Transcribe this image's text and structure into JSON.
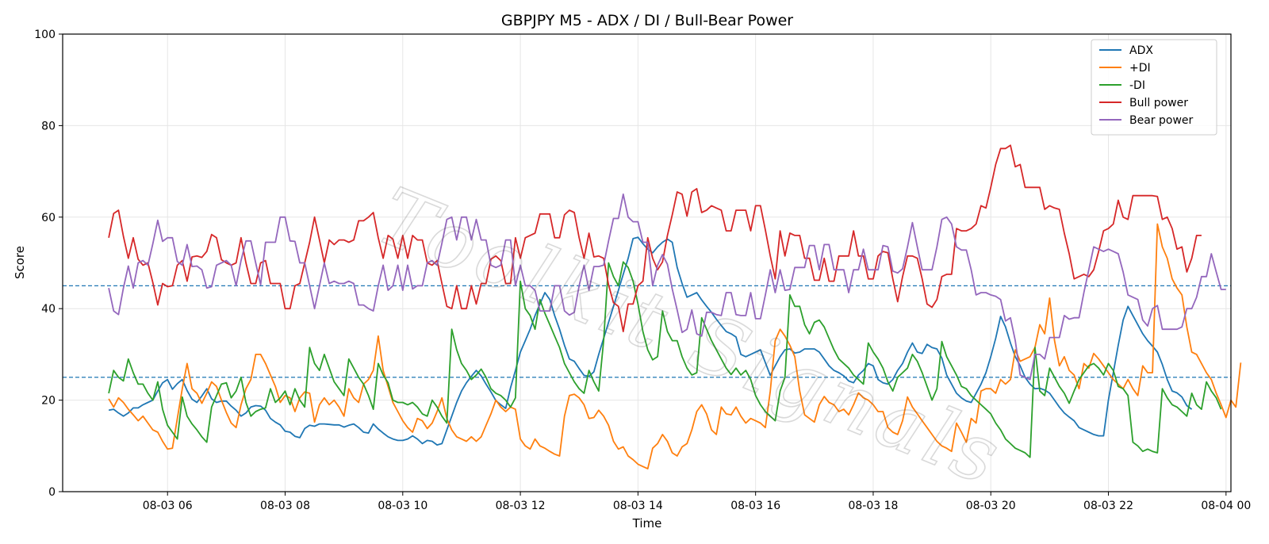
{
  "chart_data": {
    "type": "line",
    "title": "GBPJPY M5 - ADX / DI / Bull-Bear Power",
    "xlabel": "Time",
    "ylabel": "Score",
    "ylim": [
      0,
      100
    ],
    "yticks": [
      0,
      20,
      40,
      60,
      80,
      100
    ],
    "xlim": [
      "08-03 04:13",
      "08-04 00:05"
    ],
    "xticks": [
      "08-03 06",
      "08-03 08",
      "08-03 10",
      "08-03 12",
      "08-03 14",
      "08-03 16",
      "08-03 18",
      "08-03 20",
      "08-03 22",
      "08-04 00"
    ],
    "grid": true,
    "legend_position": "top-right",
    "hlines": [
      45,
      25
    ],
    "x_start": "08-03 05:00",
    "x_step_minutes": 5,
    "series": [
      {
        "name": "ADX",
        "color": "#1f77b4",
        "values": [
          17.8,
          18,
          17.2,
          16.5,
          17.2,
          18.3,
          18.3,
          19,
          19.5,
          20,
          22,
          23.8,
          24.5,
          22.4,
          23.6,
          24.5,
          22.1,
          20.2,
          19.5,
          20.9,
          22.5,
          20.3,
          19.5,
          19.8,
          19.8,
          18.7,
          17.8,
          16.5,
          17.2,
          18.5,
          18.8,
          18.7,
          17.8,
          16,
          15.2,
          14.6,
          13.2,
          13,
          12.1,
          11.8,
          13.8,
          14.5,
          14.3,
          14.8,
          14.8,
          14.7,
          14.6,
          14.6,
          14.1,
          14.5,
          14.8,
          14,
          13,
          12.8,
          14.8,
          13.7,
          12.8,
          12,
          11.5,
          11.2,
          11.2,
          11.5,
          12.2,
          11.5,
          10.5,
          11.2,
          11,
          10.2,
          10.5,
          13.5,
          16.5,
          19.5,
          22,
          23.8,
          25.2,
          26.5,
          25.3,
          23.5,
          21.8,
          19.9,
          19,
          18.2,
          22.7,
          26.5,
          30.5,
          33,
          35.5,
          38.5,
          41,
          43.5,
          42,
          38.5,
          35.5,
          32,
          29,
          28.5,
          26.9,
          25.4,
          25.2,
          26.2,
          30,
          33.5,
          37,
          40.5,
          44,
          47.5,
          51,
          55.3,
          55.6,
          54.2,
          53,
          52.2,
          53.5,
          54.5,
          55.2,
          54.5,
          49,
          45.5,
          42.5,
          43,
          43.5,
          41.9,
          40.5,
          39.2,
          37.7,
          36.3,
          35,
          34.5,
          33.8,
          30,
          29.5,
          30,
          30.5,
          31,
          28.2,
          25.4,
          27.5,
          29.5,
          31,
          31.2,
          30.3,
          30.5,
          31.2,
          31.2,
          31.2,
          30.5,
          29,
          27.5,
          26.5,
          26,
          25.3,
          24.2,
          23.8,
          25.5,
          26.5,
          28,
          27.5,
          24.5,
          23.8,
          23.5,
          24.5,
          26.5,
          28,
          30.5,
          32.5,
          30.5,
          30.2,
          32.2,
          31.5,
          31.2,
          29.2,
          25.5,
          23.5,
          21.5,
          20.5,
          19.8,
          19.5,
          21.5,
          23.5,
          26,
          29.5,
          33.5,
          38.3,
          36,
          32.5,
          29.5,
          27.5,
          25,
          23.5,
          22.5,
          22.6,
          22.2,
          21.5,
          20,
          18.5,
          17.2,
          16.3,
          15.5,
          14,
          13.5,
          13,
          12.5,
          12.2,
          12.2,
          20,
          26,
          32,
          37.5,
          40.5,
          38.5,
          36.5,
          34.5,
          33,
          31.8,
          30.5,
          27.8,
          24.5,
          22,
          21.6,
          20.7,
          18.8,
          18
        ]
      },
      {
        "name": "+DI",
        "color": "#ff7f0e",
        "values": [
          20.3,
          18.5,
          20.5,
          19.5,
          18,
          16.8,
          15.5,
          16.5,
          15,
          13.5,
          13,
          11,
          9.3,
          9.5,
          16,
          22.5,
          28,
          22.5,
          21.5,
          19.3,
          21.5,
          24,
          23,
          20,
          17.3,
          15,
          14,
          19,
          22.5,
          24.5,
          30,
          30,
          28,
          25.5,
          23,
          19.5,
          21,
          20.5,
          17.5,
          20.5,
          21.8,
          21.5,
          15.2,
          19,
          20.5,
          19,
          20,
          18.5,
          16.5,
          22.5,
          20.5,
          19.5,
          23.5,
          24.5,
          26.5,
          34,
          26.5,
          23,
          19.5,
          17.5,
          15.5,
          14,
          13,
          16,
          15.5,
          13.8,
          15,
          17.5,
          20.5,
          16,
          13.5,
          12,
          11.5,
          11,
          12,
          11,
          12,
          14.5,
          17,
          20,
          18.5,
          17.5,
          18.5,
          18,
          11.5,
          10,
          9.3,
          11.5,
          10,
          9.5,
          8.8,
          8.2,
          7.8,
          16.5,
          21,
          21.3,
          20.5,
          19,
          16,
          16.2,
          17.8,
          16.5,
          14.5,
          11,
          9.3,
          9.8,
          7.8,
          7,
          6,
          5.5,
          5,
          9.5,
          10.5,
          12.5,
          11,
          8.5,
          7.8,
          9.8,
          10.5,
          13.5,
          17.5,
          19,
          17,
          13.5,
          12.5,
          18.5,
          17,
          16.8,
          18.5,
          16.5,
          15,
          16,
          15.5,
          15,
          14,
          22,
          33,
          35.5,
          34,
          32,
          29.5,
          22,
          16.8,
          16,
          15.2,
          19,
          20.8,
          19.5,
          19,
          17.5,
          18,
          16.8,
          19,
          21.6,
          20.5,
          20,
          19,
          17.5,
          17.5,
          14,
          13,
          12.5,
          15.5,
          20.7,
          18.5,
          17,
          15.5,
          14,
          12.5,
          11,
          10,
          9.5,
          8.8,
          15,
          13,
          10.8,
          16,
          15,
          22,
          22.5,
          22.5,
          21.5,
          24.5,
          23.5,
          24.5,
          31,
          28.5,
          29,
          29.5,
          31.5,
          36.5,
          34.5,
          42.3,
          33,
          27.5,
          29.5,
          26.5,
          25.5,
          22.5,
          28,
          27,
          30.2,
          29,
          27.5,
          26,
          24.5,
          23.5,
          22.5,
          24.5,
          22.5,
          21,
          27.5,
          26,
          26,
          58.5,
          53.5,
          51,
          46.5,
          44.5,
          43,
          36,
          30.5,
          30,
          28,
          26,
          24.5,
          21.5,
          19,
          16.2,
          20,
          18.5,
          28.2
        ]
      },
      {
        "name": "-DI",
        "color": "#2ca02c",
        "values": [
          21.5,
          26.5,
          25,
          24.2,
          29,
          26,
          23.5,
          23.5,
          21.5,
          20,
          24,
          18,
          14.5,
          13,
          11.5,
          20.7,
          16.5,
          14.8,
          13.5,
          12,
          10.8,
          18.5,
          21,
          23.5,
          23.8,
          20.5,
          22,
          25,
          19.5,
          16.5,
          17.5,
          18,
          18.3,
          22.5,
          19.5,
          20.5,
          22,
          19,
          22.5,
          20,
          18.5,
          31.5,
          28,
          26.5,
          30,
          27,
          24,
          22.5,
          21,
          29,
          27,
          25,
          23.5,
          21,
          18,
          28,
          25.5,
          23.8,
          20,
          19.5,
          19.5,
          19,
          19.5,
          18.5,
          17,
          16.5,
          20,
          18.5,
          16.5,
          15,
          35.5,
          31,
          28,
          26.5,
          24.5,
          25.5,
          26.8,
          25,
          22.5,
          21.5,
          21,
          20,
          18.5,
          20.5,
          46,
          40,
          38.5,
          35.5,
          42,
          39,
          36.5,
          34,
          31.5,
          28,
          26,
          24,
          22.5,
          21.5,
          26.5,
          24,
          22,
          33,
          50,
          47,
          45,
          50.2,
          49,
          46,
          41,
          35,
          31,
          28.8,
          29.5,
          39.5,
          35,
          33,
          33,
          29.5,
          27,
          25.5,
          26,
          38,
          35.5,
          33,
          31,
          29,
          27,
          25.6,
          27,
          25.5,
          26.5,
          24.5,
          21,
          19,
          17.5,
          16.5,
          15.5,
          22,
          25,
          43,
          40.5,
          40.5,
          36.5,
          34.5,
          37,
          37.5,
          36,
          33.5,
          31,
          29,
          28,
          27,
          25.5,
          24.5,
          23.5,
          32.5,
          30.5,
          29,
          27,
          24,
          22,
          25,
          26,
          27,
          30,
          28.5,
          26,
          23,
          20,
          22.5,
          32.8,
          29.5,
          27.5,
          25.5,
          23,
          22.5,
          21,
          20,
          19,
          18,
          17,
          15,
          13.5,
          11.5,
          10.5,
          9.5,
          9,
          8.5,
          7.5,
          31.5,
          22,
          21,
          27,
          25,
          23,
          21.5,
          19.3,
          22,
          24.5,
          26,
          27.5,
          28,
          27,
          25.5,
          28,
          26.5,
          23,
          22.5,
          21,
          10.8,
          10,
          8.8,
          9.3,
          8.8,
          8.5,
          22.5,
          20.5,
          19,
          18.5,
          17.5,
          16.5,
          21.5,
          19,
          18,
          24,
          22,
          20.5,
          18
        ]
      },
      {
        "name": "Bull power",
        "color": "#d62728",
        "values": [
          55.5,
          60.8,
          61.5,
          55.8,
          51,
          55.5,
          50.8,
          49.5,
          50,
          45.7,
          40.8,
          45.5,
          44.8,
          45,
          49.5,
          50.5,
          46,
          51.3,
          51.5,
          51.2,
          52.5,
          56.2,
          55.5,
          50.7,
          50,
          49.5,
          50,
          55.5,
          50,
          45.5,
          45.5,
          50,
          50.5,
          45.5,
          45.5,
          45.5,
          40,
          40,
          45,
          45.5,
          50,
          54.5,
          60,
          55,
          50,
          55,
          54,
          55,
          55,
          54.5,
          55,
          59.2,
          59.2,
          60,
          61,
          55.5,
          51,
          56,
          55.2,
          51,
          56,
          51,
          56,
          55,
          55,
          50,
          49.5,
          50.5,
          45.5,
          40.5,
          40,
          45,
          40,
          40,
          45,
          41,
          45.5,
          45.5,
          50.8,
          51.5,
          50.5,
          45.5,
          45.5,
          55.5,
          51,
          55.5,
          56,
          56.5,
          60.7,
          60.7,
          60.7,
          55.5,
          55.5,
          60.5,
          61.5,
          61,
          55.5,
          51,
          56.5,
          51.3,
          51.5,
          51,
          45.2,
          41.3,
          40.5,
          35,
          41,
          41,
          45,
          46,
          55.5,
          51,
          48.5,
          50.2,
          56,
          60.5,
          65.5,
          65,
          60.2,
          65.5,
          66.2,
          61,
          61.5,
          62.5,
          62,
          61.5,
          57,
          57,
          61.5,
          61.5,
          61.5,
          57,
          62.5,
          62.5,
          57.2,
          51.5,
          46.5,
          57,
          51.5,
          56.5,
          56,
          56,
          51,
          51,
          46.2,
          46.2,
          51,
          46,
          46,
          51.5,
          51.5,
          51.5,
          57,
          51.5,
          51.5,
          46.5,
          46.5,
          51.5,
          52.5,
          52.2,
          46.5,
          41.5,
          47,
          51.5,
          51.5,
          51,
          46.5,
          41,
          40.3,
          42,
          47,
          47.5,
          47.5,
          57.5,
          57,
          57,
          57.5,
          58.5,
          62.5,
          62,
          66.5,
          71.5,
          75,
          75,
          75.7,
          71,
          71.5,
          66.5,
          66.5,
          66.5,
          66.5,
          61.7,
          62.5,
          62,
          61.7,
          56.5,
          52,
          46.5,
          47,
          47.5,
          47,
          48.5,
          52.5,
          57,
          57.5,
          58.5,
          63.7,
          60,
          59.5,
          64.7,
          64.7,
          64.7,
          64.7,
          64.7,
          64.5,
          59.5,
          60,
          57.5,
          53,
          53.5,
          48,
          51,
          56,
          56
        ]
      },
      {
        "name": "Bear power",
        "color": "#9467bd",
        "values": [
          44.5,
          39.5,
          38.7,
          44.5,
          49.3,
          44.5,
          50,
          50.5,
          49.5,
          54.2,
          59.3,
          54.7,
          55.5,
          55.5,
          50.3,
          49.5,
          54,
          49.2,
          49.3,
          48.5,
          44.5,
          44.8,
          49.5,
          50,
          50.5,
          49.5,
          45,
          50.5,
          54.8,
          54.8,
          50,
          45.2,
          54.5,
          54.5,
          54.5,
          60,
          60,
          54.8,
          54.7,
          50,
          50,
          45,
          40,
          45,
          50,
          45.5,
          46,
          45.5,
          45.5,
          46,
          45.5,
          40.8,
          40.8,
          40,
          39.5,
          45,
          49.5,
          44,
          45,
          49.5,
          44,
          49.5,
          44.3,
          45,
          45,
          50,
          50.5,
          49.5,
          54.3,
          59.5,
          60,
          55,
          60,
          60,
          55,
          59.5,
          55,
          55,
          49.5,
          49,
          49.5,
          55,
          55,
          45,
          49.5,
          45,
          45,
          44,
          39.5,
          39.5,
          39.5,
          45,
          45,
          39.5,
          38.6,
          39.2,
          45,
          49.5,
          44,
          49.2,
          49.2,
          49.5,
          54.8,
          59.7,
          59.7,
          65,
          60,
          59,
          59,
          54.5,
          54.5,
          45,
          49.5,
          51.8,
          49.7,
          44.3,
          39.7,
          34.8,
          35.5,
          39.7,
          34.5,
          34,
          39.2,
          39.2,
          38.7,
          38.5,
          43.5,
          43.5,
          38.7,
          38.5,
          38.5,
          43.5,
          37.8,
          37.8,
          43,
          48.5,
          43.5,
          48.5,
          44,
          44.2,
          49,
          49,
          49,
          53.8,
          53.8,
          48.5,
          54,
          54,
          48.5,
          48.5,
          48.5,
          43.5,
          48.5,
          48.5,
          53,
          48.5,
          48.5,
          48.5,
          53.8,
          53.5,
          48.2,
          47.8,
          48.7,
          53.5,
          58.8,
          53.5,
          48.5,
          48.5,
          48.5,
          53.5,
          59.5,
          60,
          58.5,
          53.5,
          52.8,
          52.8,
          48.5,
          43,
          43.5,
          43.5,
          43,
          42.7,
          42,
          37.3,
          38,
          33,
          25.5,
          25,
          24.5,
          30,
          30,
          29,
          33.7,
          33.7,
          33.7,
          38.5,
          37.7,
          38,
          38,
          43.5,
          48.5,
          53.5,
          53,
          52.5,
          53,
          52.5,
          52,
          48,
          43,
          42.5,
          42,
          37.5,
          36.2,
          40,
          40.7,
          35.5,
          35.5,
          35.5,
          35.5,
          36,
          40,
          40,
          42.5,
          47,
          47,
          52,
          48,
          44.2,
          44.2
        ]
      }
    ],
    "watermark": "Toolkit Signals"
  }
}
